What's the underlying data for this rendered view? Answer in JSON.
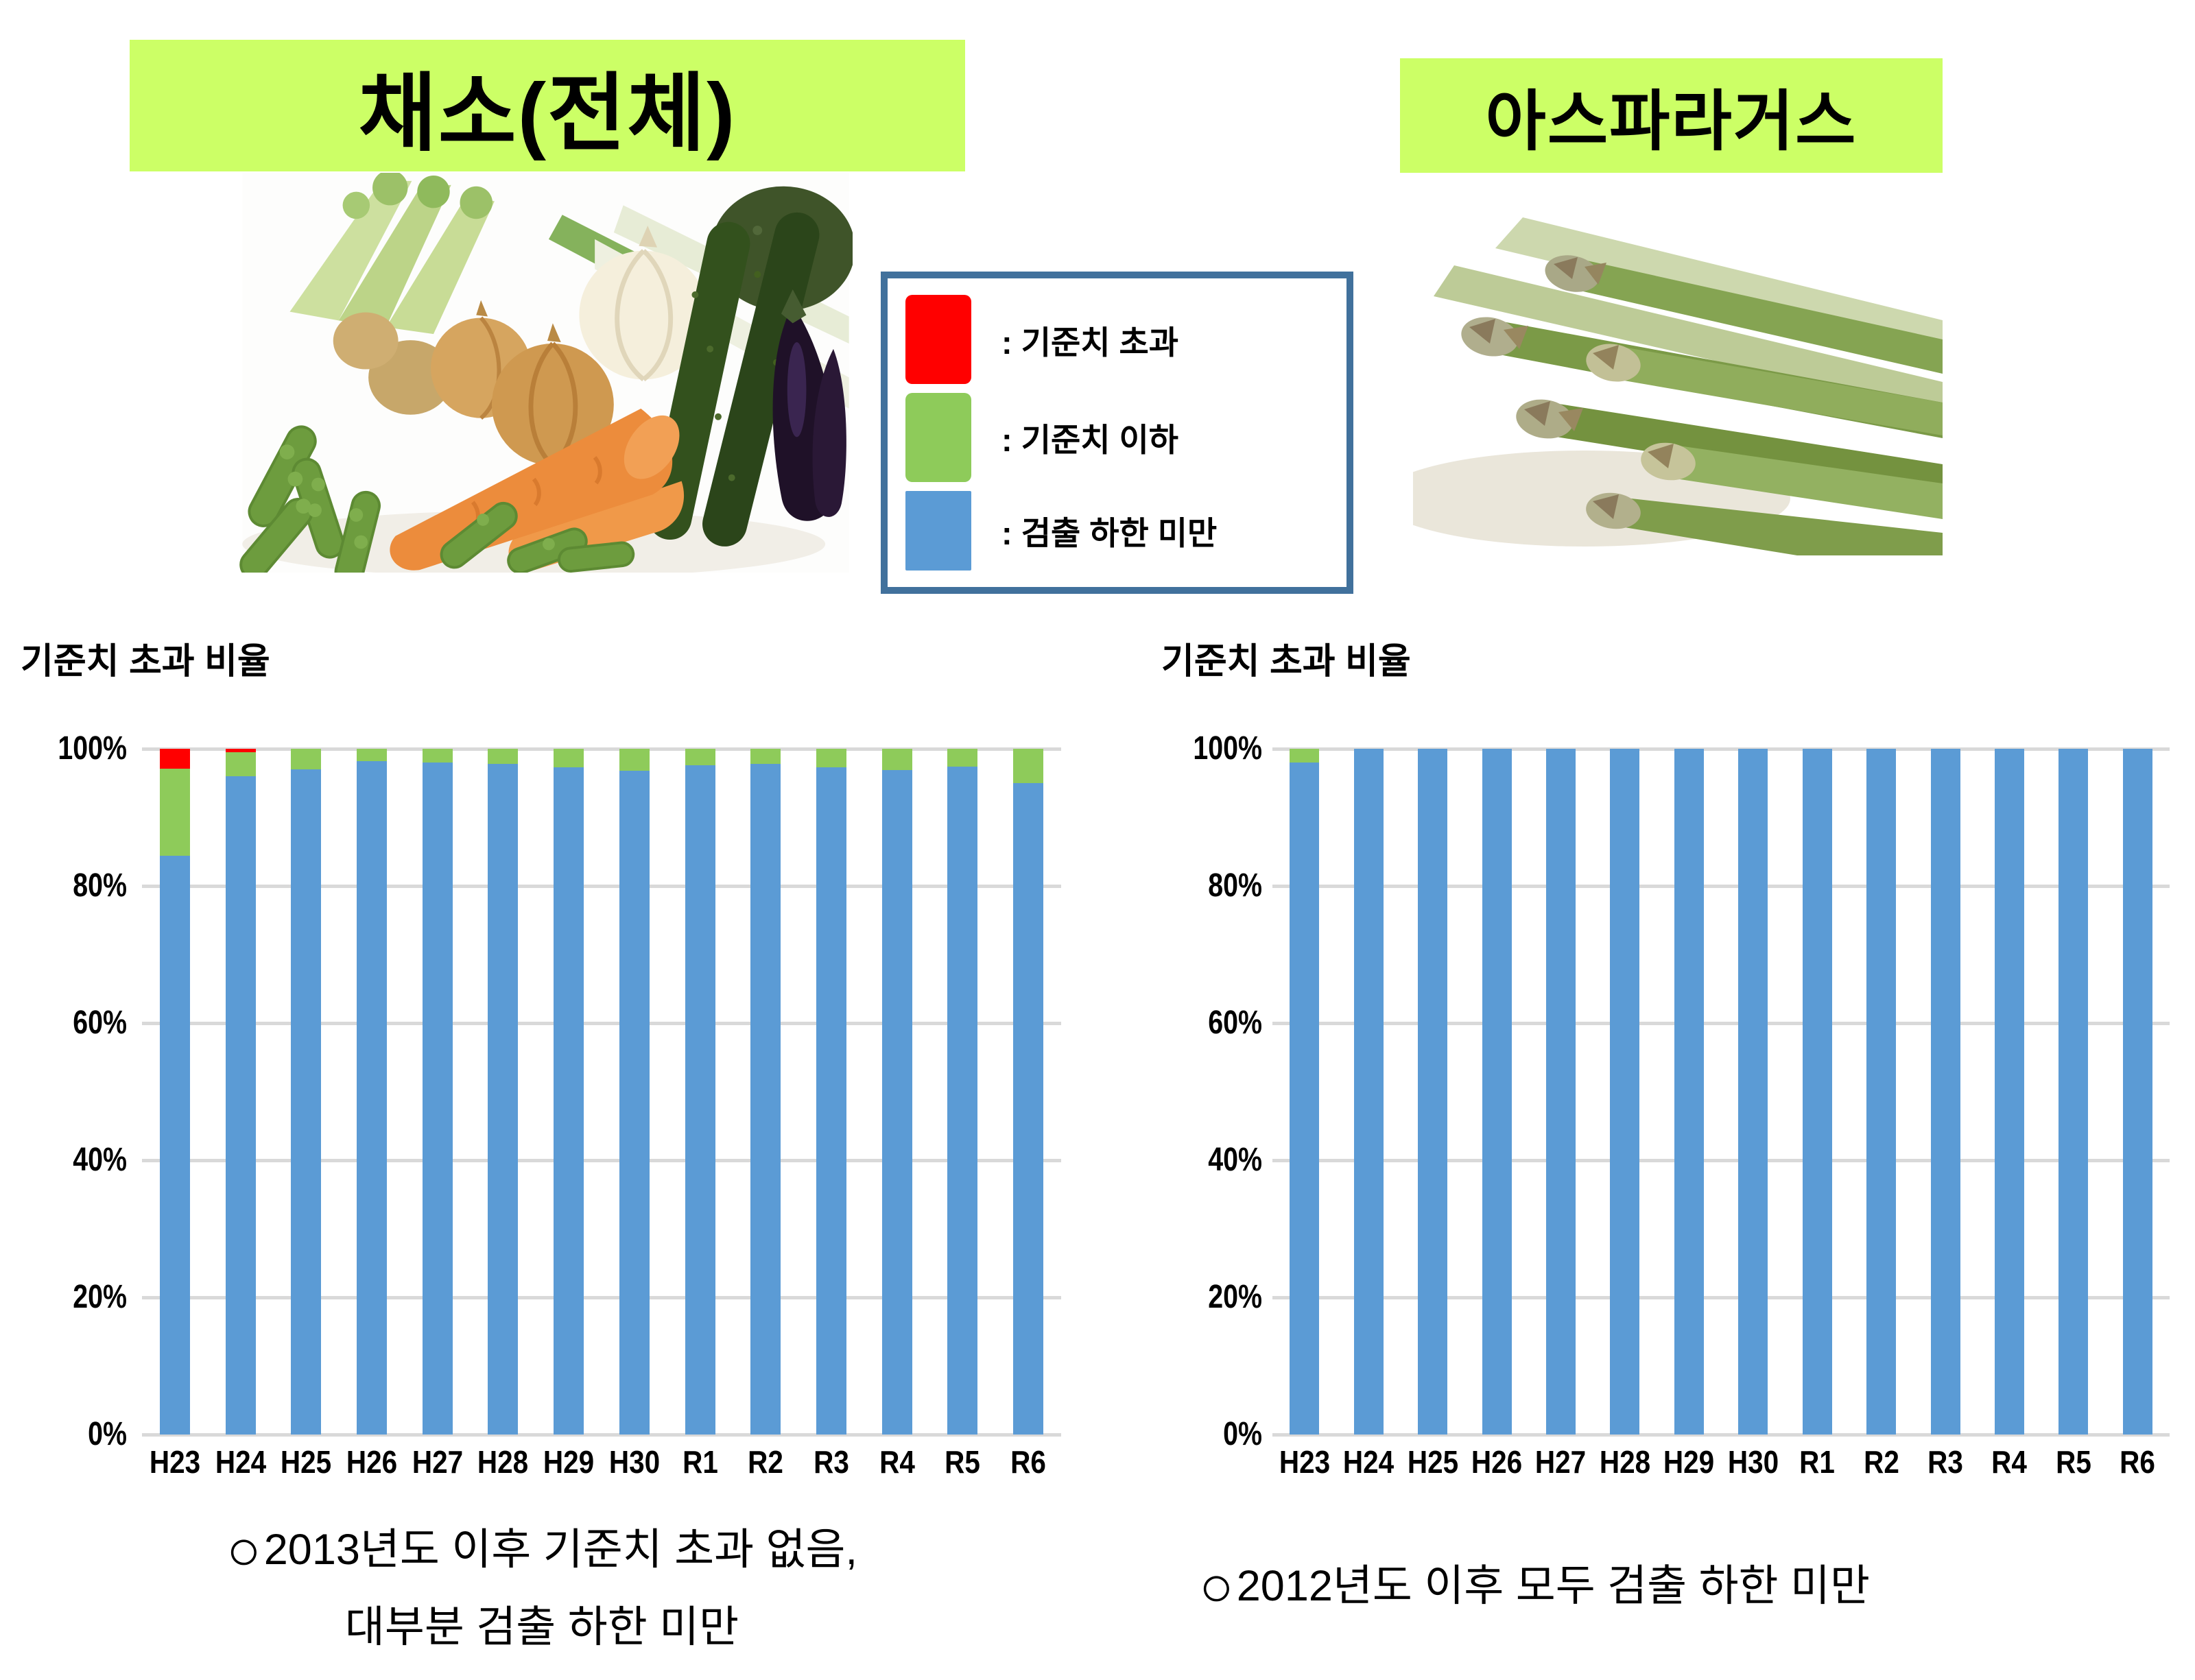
{
  "titles": {
    "left": "채소(전체)",
    "right": "아스파라거스"
  },
  "legend": {
    "border_color": "#41719c",
    "items": [
      {
        "label": ": 기준치 초과",
        "color": "#ff0000"
      },
      {
        "label": ": 기준치 이하",
        "color": "#8ecb5a"
      },
      {
        "label": ": 검출 하한 미만",
        "color": "#5b9bd5"
      }
    ]
  },
  "images": {
    "left_photo": "vegetables-photo",
    "right_photo": "asparagus-photo"
  },
  "colors": {
    "title_bg": "#ccff66",
    "gridline": "#d9d9d9",
    "bar_blue": "#5b9bd5",
    "bar_green": "#8ecb5a",
    "bar_red": "#ff0000"
  },
  "chart_data": [
    {
      "type": "bar",
      "stacked": true,
      "title": "기준치 초과 비율",
      "categories": [
        "H23",
        "H24",
        "H25",
        "H26",
        "H27",
        "H28",
        "H29",
        "H30",
        "R1",
        "R2",
        "R3",
        "R4",
        "R5",
        "R6"
      ],
      "series": [
        {
          "name": "검출 하한 미만",
          "color": "#5b9bd5",
          "values": [
            84.4,
            96.0,
            97.0,
            98.2,
            98.0,
            97.8,
            97.3,
            96.8,
            97.6,
            97.8,
            97.3,
            96.9,
            97.4,
            95.0
          ]
        },
        {
          "name": "기준치 이하",
          "color": "#8ecb5a",
          "values": [
            12.7,
            3.5,
            3.0,
            1.8,
            2.0,
            2.2,
            2.7,
            3.2,
            2.4,
            2.2,
            2.7,
            3.1,
            2.6,
            5.0
          ]
        },
        {
          "name": "기준치 초과",
          "color": "#ff0000",
          "values": [
            2.9,
            0.5,
            0,
            0,
            0,
            0,
            0,
            0,
            0,
            0,
            0,
            0,
            0,
            0
          ]
        }
      ],
      "ylim": [
        0,
        100
      ],
      "yticks": [
        "0%",
        "20%",
        "40%",
        "60%",
        "80%",
        "100%"
      ],
      "grid": true,
      "legend_position": "none"
    },
    {
      "type": "bar",
      "stacked": true,
      "title": "기준치 초과 비율",
      "categories": [
        "H23",
        "H24",
        "H25",
        "H26",
        "H27",
        "H28",
        "H29",
        "H30",
        "R1",
        "R2",
        "R3",
        "R4",
        "R5",
        "R6"
      ],
      "series": [
        {
          "name": "검출 하한 미만",
          "color": "#5b9bd5",
          "values": [
            98.0,
            100,
            100,
            100,
            100,
            100,
            100,
            100,
            100,
            100,
            100,
            100,
            100,
            100
          ]
        },
        {
          "name": "기준치 이하",
          "color": "#8ecb5a",
          "values": [
            2.0,
            0,
            0,
            0,
            0,
            0,
            0,
            0,
            0,
            0,
            0,
            0,
            0,
            0
          ]
        },
        {
          "name": "기준치 초과",
          "color": "#ff0000",
          "values": [
            0,
            0,
            0,
            0,
            0,
            0,
            0,
            0,
            0,
            0,
            0,
            0,
            0,
            0
          ]
        }
      ],
      "ylim": [
        0,
        100
      ],
      "yticks": [
        "0%",
        "20%",
        "40%",
        "60%",
        "80%",
        "100%"
      ],
      "grid": true,
      "legend_position": "none"
    }
  ],
  "notes": {
    "left": {
      "bullet": "○",
      "line1": "2013년도 이후 기준치 초과 없음,",
      "line2": "대부분 검출 하한 미만"
    },
    "right": {
      "bullet": "○",
      "line1": "2012년도 이후 모두 검출 하한 미만"
    }
  }
}
